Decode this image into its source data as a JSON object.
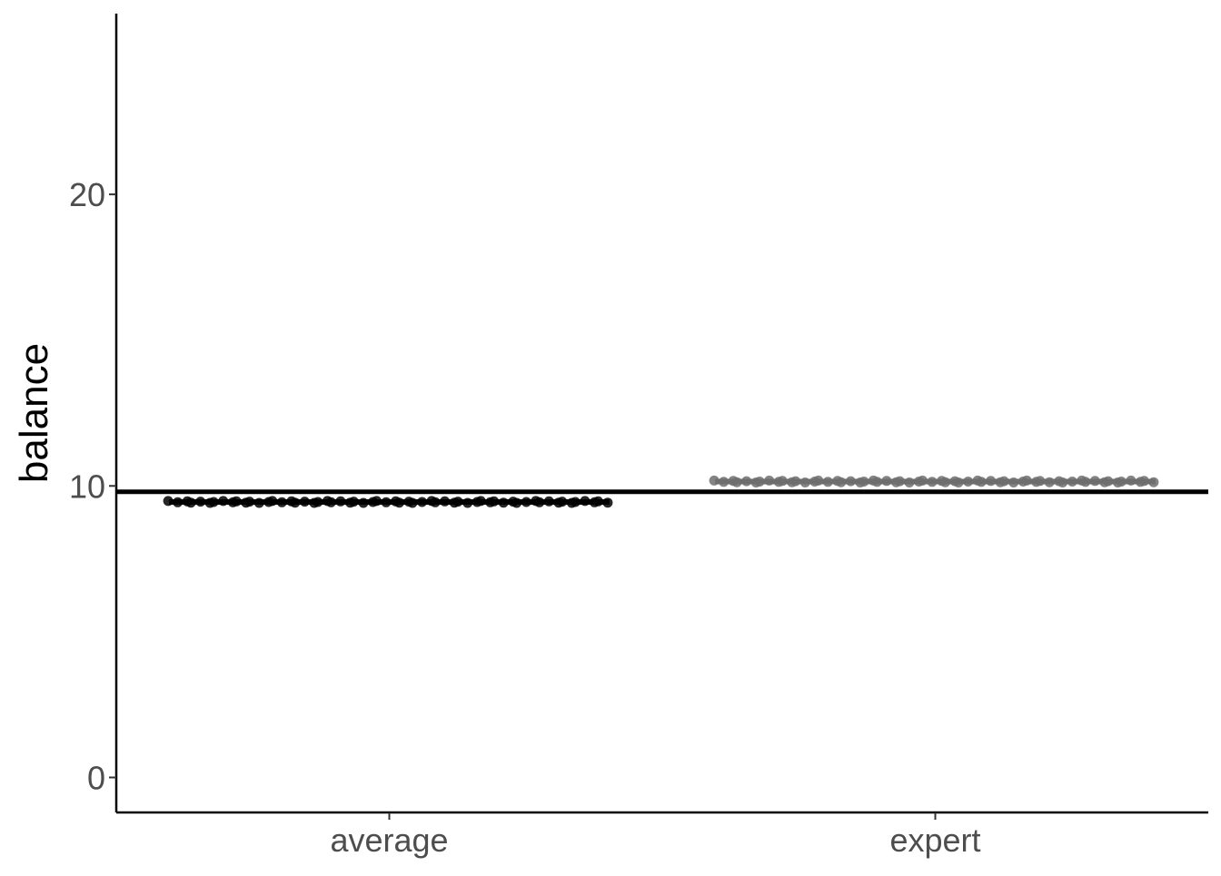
{
  "chart_data": {
    "type": "scatter",
    "title": "",
    "xlabel": "",
    "ylabel": "balance",
    "categories": [
      "average",
      "expert"
    ],
    "ylim": [
      -1.2,
      26.2
    ],
    "y_ticks": [
      0,
      10,
      20
    ],
    "y_tick_labels": [
      "0",
      "10",
      "20"
    ],
    "grid": false,
    "legend": "none",
    "reference_line": {
      "y": 9.8,
      "color": "#000000"
    },
    "series": [
      {
        "category": "average",
        "color": "#000000",
        "values": [
          9.45,
          9.45,
          9.45,
          9.45,
          9.45,
          9.45,
          9.45,
          9.45,
          9.45,
          9.45,
          9.45,
          9.45,
          9.45,
          9.45,
          9.45,
          9.45,
          9.45,
          9.45,
          9.45,
          9.45,
          9.45,
          9.45,
          9.45,
          9.45,
          9.45,
          9.45,
          9.45,
          9.45,
          9.45,
          9.45,
          9.45,
          9.45,
          9.45,
          9.45,
          9.45,
          9.45,
          9.45,
          9.45,
          9.45,
          9.45,
          9.45,
          9.45,
          9.45,
          9.45,
          9.45,
          9.45,
          9.45,
          9.45,
          9.45,
          9.45,
          9.45,
          9.45,
          9.45,
          9.45,
          9.45,
          9.45,
          9.45,
          9.45,
          9.45,
          9.45
        ],
        "mean": 9.45
      },
      {
        "category": "expert",
        "color": "#6e6e6e",
        "values": [
          10.15,
          10.15,
          10.15,
          10.15,
          10.15,
          10.15,
          10.15,
          10.15,
          10.15,
          10.15,
          10.15,
          10.15,
          10.15,
          10.15,
          10.15,
          10.15,
          10.15,
          10.15,
          10.15,
          10.15,
          10.15,
          10.15,
          10.15,
          10.15,
          10.15,
          10.15,
          10.15,
          10.15,
          10.15,
          10.15,
          10.15,
          10.15,
          10.15,
          10.15,
          10.15,
          10.15,
          10.15,
          10.15,
          10.15,
          10.15,
          10.15,
          10.15,
          10.15,
          10.15,
          10.15,
          10.15,
          10.15,
          10.15,
          10.15,
          10.15,
          10.15,
          10.15,
          10.15,
          10.15,
          10.15,
          10.15,
          10.15,
          10.15,
          10.15,
          10.15
        ],
        "mean": 10.15
      }
    ]
  }
}
